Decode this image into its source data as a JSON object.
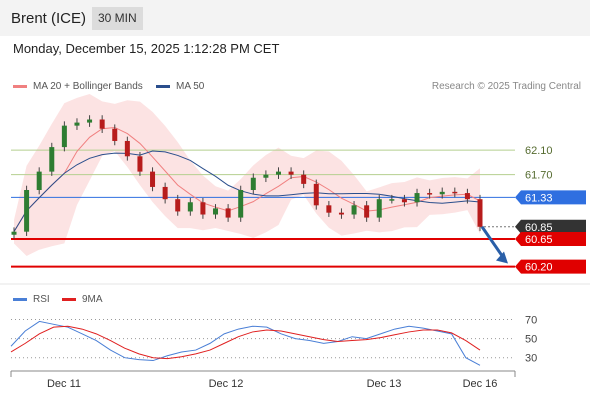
{
  "header": {
    "title": "Brent (ICE)",
    "timeframe": "30 MIN"
  },
  "datetime": "Monday, December 15, 2025 1:12:28 PM CET",
  "legend": {
    "ma20": {
      "label": "MA 20 + Bollinger Bands",
      "color": "#f08080"
    },
    "ma50": {
      "label": "MA 50",
      "color": "#2a4e8c"
    },
    "rsi": {
      "label": "RSI",
      "color": "#4a7fd6"
    },
    "rsi_ma": {
      "label": "9MA",
      "color": "#e02020"
    }
  },
  "credit": "Research © 2025 Trading Central",
  "chart_data": {
    "type": "line",
    "y_range": [
      59.9,
      63.0
    ],
    "x_ticks": [
      "Dec 11",
      "Dec 12",
      "Dec 13",
      "Dec 16"
    ],
    "price_series": [
      60.77,
      61.45,
      61.75,
      62.15,
      62.5,
      62.55,
      62.6,
      62.45,
      62.25,
      62.0,
      61.75,
      61.5,
      61.3,
      61.1,
      61.25,
      61.05,
      61.15,
      61.0,
      61.45,
      61.65,
      61.7,
      61.75,
      61.7,
      61.55,
      61.2,
      61.08,
      61.05,
      61.2,
      61.0,
      61.3,
      61.3,
      61.25,
      61.4,
      61.38,
      61.42,
      61.4,
      61.3,
      60.85
    ],
    "price_levels": [
      {
        "label": "62.10",
        "value": 62.1,
        "kind": "target",
        "color": "#8fbc5a"
      },
      {
        "label": "61.70",
        "value": 61.7,
        "kind": "target",
        "color": "#8fbc5a"
      },
      {
        "label": "61.33",
        "value": 61.33,
        "kind": "pivot",
        "color": "#2f6fe0"
      },
      {
        "label": "60.85",
        "value": 60.85,
        "kind": "last",
        "color": "#333333"
      },
      {
        "label": "60.65",
        "value": 60.65,
        "kind": "support",
        "color": "#e00000"
      },
      {
        "label": "60.20",
        "value": 60.2,
        "kind": "support",
        "color": "#e00000"
      }
    ],
    "forecast": "down",
    "rsi": {
      "levels": [
        70,
        50,
        30
      ],
      "y_range": [
        15,
        80
      ],
      "values": [
        42,
        58,
        68,
        65,
        62,
        55,
        48,
        38,
        30,
        28,
        27,
        32,
        36,
        38,
        45,
        55,
        60,
        63,
        62,
        55,
        50,
        48,
        45,
        47,
        52,
        50,
        55,
        60,
        63,
        61,
        58,
        55,
        30,
        22
      ],
      "ma_values": [
        36,
        45,
        55,
        62,
        63,
        60,
        55,
        48,
        40,
        34,
        30,
        29,
        31,
        34,
        38,
        45,
        52,
        57,
        59,
        58,
        55,
        52,
        49,
        47,
        48,
        49,
        51,
        54,
        57,
        59,
        59,
        56,
        48,
        38
      ]
    }
  }
}
